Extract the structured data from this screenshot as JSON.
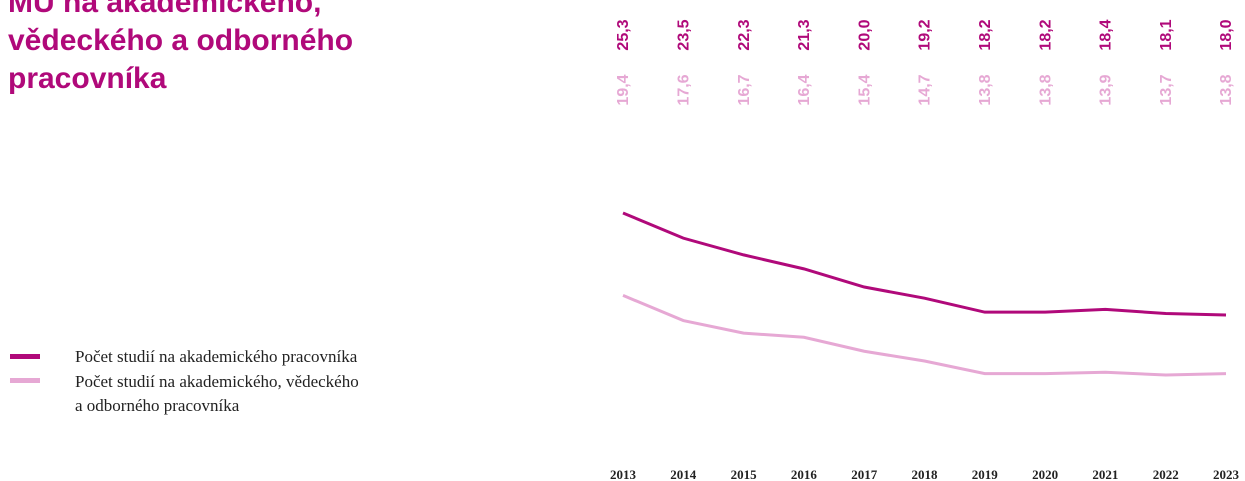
{
  "chart_data": {
    "type": "line",
    "title": "MU na akademického, vědeckého a odborného pracovníka",
    "categories": [
      "2013",
      "2014",
      "2015",
      "2016",
      "2017",
      "2018",
      "2019",
      "2020",
      "2021",
      "2022",
      "2023"
    ],
    "series": [
      {
        "name": "Počet studií na akademického pracovníka",
        "color": "#b0097a",
        "values": [
          25.3,
          23.5,
          22.3,
          21.3,
          20.0,
          19.2,
          18.2,
          18.2,
          18.4,
          18.1,
          18.0
        ],
        "value_labels": [
          "25,3",
          "23,5",
          "22,3",
          "21,3",
          "20,0",
          "19,2",
          "18,2",
          "18,2",
          "18,4",
          "18,1",
          "18,0"
        ]
      },
      {
        "name": "Počet studií na akademického, vědeckého a odborného pracovníka",
        "color": "#e6a8d4",
        "values": [
          19.4,
          17.6,
          16.7,
          16.4,
          15.4,
          14.7,
          13.8,
          13.8,
          13.9,
          13.7,
          13.8
        ],
        "value_labels": [
          "19,4",
          "17,6",
          "16,7",
          "16,4",
          "15,4",
          "14,7",
          "13,8",
          "13,8",
          "13,9",
          "13,7",
          "13,8"
        ]
      }
    ]
  }
}
